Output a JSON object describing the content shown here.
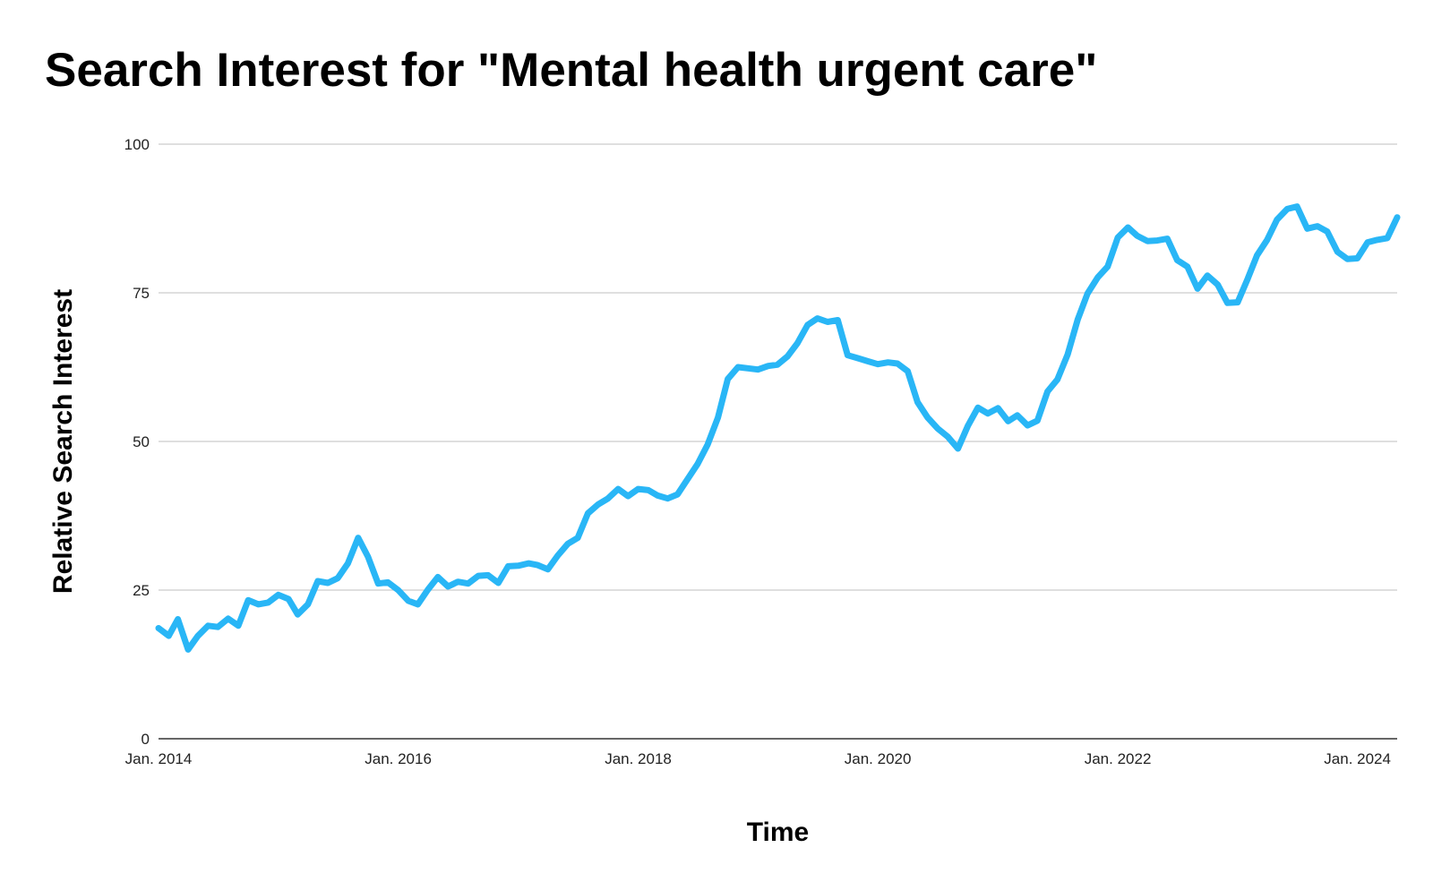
{
  "colors": {
    "line": "#29B6F6",
    "grid": "#CCCCCC",
    "axis": "#333333"
  },
  "chart_data": {
    "type": "line",
    "title": "Search Interest for \"Mental health urgent care\"",
    "xlabel": "Time",
    "ylabel": "Relative Search Interest",
    "ylim": [
      0,
      100
    ],
    "yticks": [
      0,
      25,
      50,
      75,
      100
    ],
    "xticks": [
      "Jan. 2014",
      "Jan. 2016",
      "Jan. 2018",
      "Jan. 2020",
      "Jan. 2022",
      "Jan. 2024"
    ],
    "grid": true,
    "legend": "none",
    "series": [
      {
        "x": [
          "2014-01",
          "2014-02",
          "2014-03",
          "2014-04",
          "2014-05",
          "2014-06",
          "2014-07",
          "2014-08",
          "2014-09",
          "2014-10",
          "2014-11",
          "2014-12",
          "2015-01",
          "2015-02",
          "2015-03",
          "2015-04",
          "2015-05",
          "2015-06",
          "2015-07",
          "2015-08",
          "2015-09",
          "2015-10",
          "2015-11",
          "2015-12",
          "2016-01",
          "2016-02",
          "2016-03",
          "2016-04",
          "2016-05",
          "2016-06",
          "2016-07",
          "2016-08",
          "2016-09",
          "2016-10",
          "2016-11",
          "2016-12",
          "2017-01",
          "2017-02",
          "2017-03",
          "2017-04",
          "2017-05",
          "2017-06",
          "2017-07",
          "2017-08",
          "2017-09",
          "2017-10",
          "2017-11",
          "2017-12",
          "2018-01",
          "2018-02",
          "2018-03",
          "2018-04",
          "2018-05",
          "2018-06",
          "2018-07",
          "2018-08",
          "2018-09",
          "2018-10",
          "2018-11",
          "2018-12",
          "2019-01",
          "2019-02",
          "2019-03",
          "2019-04",
          "2019-05",
          "2019-06",
          "2019-07",
          "2019-08",
          "2019-09",
          "2019-10",
          "2019-11",
          "2019-12",
          "2020-01",
          "2020-02",
          "2020-03",
          "2020-04",
          "2020-05",
          "2020-06",
          "2020-07",
          "2020-08",
          "2020-09",
          "2020-10",
          "2020-11",
          "2020-12",
          "2021-01",
          "2021-02",
          "2021-03",
          "2021-04",
          "2021-05",
          "2021-06",
          "2021-07",
          "2021-08",
          "2021-09",
          "2021-10",
          "2021-11",
          "2021-12",
          "2022-01",
          "2022-02",
          "2022-03",
          "2022-04",
          "2022-05",
          "2022-06",
          "2022-07",
          "2022-08",
          "2022-09",
          "2022-10",
          "2022-11",
          "2022-12",
          "2023-01",
          "2023-02",
          "2023-03",
          "2023-04",
          "2023-05",
          "2023-06",
          "2023-07",
          "2023-08",
          "2023-09",
          "2023-10",
          "2023-11",
          "2023-12",
          "2024-01",
          "2024-02",
          "2024-03",
          "2024-04",
          "2024-05"
        ],
        "values": [
          18.6,
          17.3,
          20.1,
          15.0,
          17.3,
          19.0,
          18.8,
          20.2,
          19.0,
          23.3,
          22.6,
          22.9,
          24.2,
          23.5,
          20.9,
          22.6,
          26.5,
          26.2,
          27.0,
          29.5,
          33.8,
          30.6,
          26.1,
          26.3,
          25.0,
          23.2,
          22.6,
          25.1,
          27.2,
          25.6,
          26.4,
          26.1,
          27.4,
          27.5,
          26.2,
          29.0,
          29.1,
          29.5,
          29.2,
          28.5,
          30.8,
          32.8,
          33.8,
          37.9,
          39.4,
          40.4,
          42.0,
          40.8,
          42.0,
          41.8,
          40.9,
          40.4,
          41.1,
          43.7,
          46.2,
          49.5,
          54.0,
          60.5,
          62.5,
          62.3,
          62.1,
          62.7,
          62.9,
          64.3,
          66.5,
          69.6,
          70.7,
          70.1,
          70.4,
          64.5,
          64.0,
          63.5,
          63.0,
          63.3,
          63.1,
          61.8,
          56.6,
          54.0,
          52.2,
          50.8,
          48.8,
          52.6,
          55.7,
          54.7,
          55.6,
          53.4,
          54.4,
          52.7,
          53.5,
          58.4,
          60.4,
          64.6,
          70.5,
          74.9,
          77.6,
          79.4,
          84.3,
          86.0,
          84.6,
          83.7,
          83.8,
          84.1,
          80.5,
          79.4,
          75.7,
          77.9,
          76.4,
          73.3,
          73.4,
          77.4,
          81.3,
          83.9,
          87.3,
          89.1,
          89.5,
          85.8,
          86.2,
          85.3,
          81.9,
          80.7,
          80.8,
          83.5,
          83.9,
          84.2,
          87.7
        ]
      }
    ]
  }
}
